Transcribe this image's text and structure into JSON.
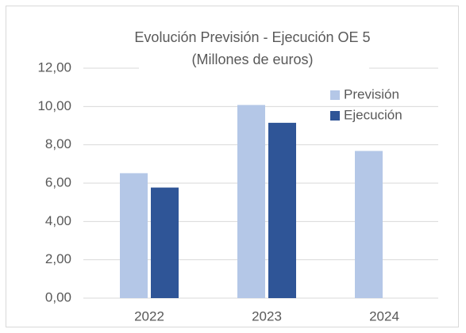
{
  "chart_data": {
    "type": "bar",
    "title": "Evolución Previsión - Ejecución OE 5",
    "subtitle": "(Millones de euros)",
    "categories": [
      "2022",
      "2023",
      "2024"
    ],
    "series": [
      {
        "name": "Previsión",
        "color": "#b4c7e7",
        "values": [
          6.52,
          10.08,
          7.68
        ]
      },
      {
        "name": "Ejecución",
        "color": "#2f5597",
        "values": [
          5.77,
          9.15,
          null
        ]
      }
    ],
    "ylim": [
      0,
      12
    ],
    "yticks": [
      {
        "value": 0,
        "label": "0,00"
      },
      {
        "value": 2,
        "label": "2,00"
      },
      {
        "value": 4,
        "label": "4,00"
      },
      {
        "value": 6,
        "label": "6,00"
      },
      {
        "value": 8,
        "label": "8,00"
      },
      {
        "value": 10,
        "label": "10,00"
      },
      {
        "value": 12,
        "label": "12,00"
      }
    ],
    "grid": true,
    "legend": "upper right"
  }
}
